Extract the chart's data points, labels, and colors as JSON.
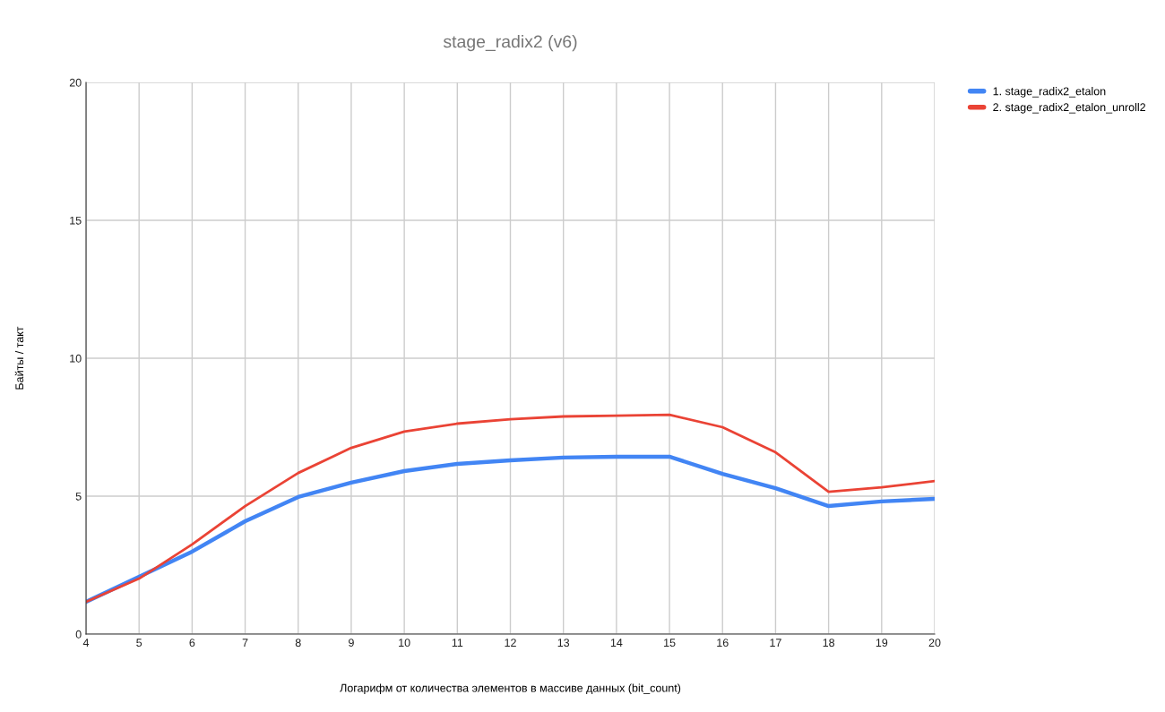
{
  "chart_data": {
    "type": "line",
    "title": "stage_radix2 (v6)",
    "xlabel": "Логарифм от количества элементов в массиве данных (bit_count)",
    "ylabel": "Байты / такт",
    "x": [
      4,
      5,
      6,
      7,
      8,
      9,
      10,
      11,
      12,
      13,
      14,
      15,
      16,
      17,
      18,
      19,
      20
    ],
    "series": [
      {
        "name": "1. stage_radix2_etalon",
        "color": "#4285f4",
        "values": [
          1.17,
          2.08,
          2.99,
          4.09,
          4.97,
          5.49,
          5.91,
          6.17,
          6.3,
          6.4,
          6.43,
          6.43,
          5.81,
          5.29,
          4.64,
          4.81,
          4.9
        ]
      },
      {
        "name": "2. stage_radix2_etalon_unroll2",
        "color": "#ea4335",
        "values": [
          1.17,
          2.01,
          3.25,
          4.64,
          5.84,
          6.75,
          7.34,
          7.63,
          7.79,
          7.89,
          7.92,
          7.95,
          7.5,
          6.59,
          5.16,
          5.32,
          5.55
        ]
      }
    ],
    "xlim": [
      4,
      20
    ],
    "xticks": [
      4,
      5,
      6,
      7,
      8,
      9,
      10,
      11,
      12,
      13,
      14,
      15,
      16,
      17,
      18,
      19,
      20
    ],
    "ylim": [
      0,
      20
    ],
    "yticks": [
      0,
      5,
      10,
      15,
      20
    ],
    "grid": true,
    "legend": "top right",
    "marker": "none",
    "line_style": "solid"
  }
}
